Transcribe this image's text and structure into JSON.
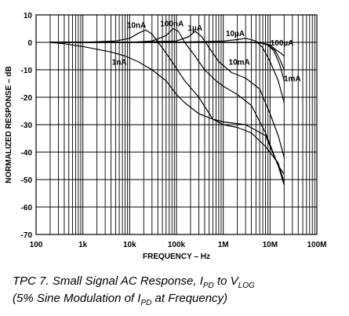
{
  "chart_data": {
    "type": "line",
    "xscale": "log",
    "xlim": [
      100,
      100000000
    ],
    "ylim": [
      -70,
      10
    ],
    "xlabel": "FREQUENCY – Hz",
    "ylabel": "NORMALIZED RESPONSE – dB",
    "x_ticks": [
      {
        "value": 100,
        "label": "100"
      },
      {
        "value": 1000,
        "label": "1k"
      },
      {
        "value": 10000,
        "label": "10k"
      },
      {
        "value": 100000,
        "label": "100k"
      },
      {
        "value": 1000000,
        "label": "1M"
      },
      {
        "value": 10000000,
        "label": "10M"
      },
      {
        "value": 100000000,
        "label": "100M"
      }
    ],
    "y_ticks": [
      10,
      0,
      -10,
      -20,
      -30,
      -40,
      -50,
      -60,
      -70
    ],
    "grid": true,
    "series": [
      {
        "name": "1nA",
        "label": "1nA",
        "label_at": [
          6000,
          -7
        ],
        "points": [
          [
            200,
            0
          ],
          [
            400,
            -0.5
          ],
          [
            1000,
            -1.5
          ],
          [
            2000,
            -2.5
          ],
          [
            4000,
            -3.5
          ],
          [
            8000,
            -5
          ],
          [
            15000,
            -7
          ],
          [
            30000,
            -10
          ],
          [
            60000,
            -14
          ],
          [
            100000,
            -19
          ],
          [
            150000,
            -22
          ],
          [
            300000,
            -26
          ],
          [
            600000,
            -28
          ],
          [
            1000000,
            -29
          ],
          [
            3000000,
            -30
          ],
          [
            8000000,
            -34
          ],
          [
            15000000,
            -45
          ],
          [
            20000000,
            -48
          ]
        ]
      },
      {
        "name": "10nA",
        "label": "10nA",
        "label_at": [
          14000,
          6.5
        ],
        "points": [
          [
            200,
            0
          ],
          [
            1000,
            0
          ],
          [
            5000,
            0.5
          ],
          [
            10000,
            1.5
          ],
          [
            16000,
            3.5
          ],
          [
            22000,
            4.5
          ],
          [
            30000,
            3
          ],
          [
            50000,
            -2
          ],
          [
            80000,
            -7
          ],
          [
            150000,
            -14
          ],
          [
            300000,
            -20
          ],
          [
            600000,
            -28
          ],
          [
            1000000,
            -30
          ],
          [
            2000000,
            -31
          ],
          [
            4000000,
            -33
          ],
          [
            8000000,
            -38
          ],
          [
            15000000,
            -44
          ],
          [
            20000000,
            -51
          ]
        ]
      },
      {
        "name": "100nA",
        "label": "100nA",
        "label_at": [
          80000,
          7
        ],
        "points": [
          [
            200,
            0
          ],
          [
            1000,
            0
          ],
          [
            10000,
            0
          ],
          [
            30000,
            0.5
          ],
          [
            60000,
            2.5
          ],
          [
            85000,
            5
          ],
          [
            110000,
            4
          ],
          [
            150000,
            0
          ],
          [
            250000,
            -5
          ],
          [
            400000,
            -10
          ],
          [
            700000,
            -14
          ],
          [
            1000000,
            -16
          ],
          [
            2000000,
            -19
          ],
          [
            4000000,
            -23
          ],
          [
            8000000,
            -33
          ],
          [
            15000000,
            -45
          ],
          [
            20000000,
            -52
          ]
        ]
      },
      {
        "name": "1µA",
        "label": "1µA",
        "label_at": [
          250000,
          5.5
        ],
        "points": [
          [
            200,
            0
          ],
          [
            1000,
            0
          ],
          [
            10000,
            0
          ],
          [
            100000,
            0.5
          ],
          [
            180000,
            2
          ],
          [
            250000,
            4
          ],
          [
            350000,
            2
          ],
          [
            500000,
            -2
          ],
          [
            800000,
            -7
          ],
          [
            1500000,
            -11
          ],
          [
            3000000,
            -13
          ],
          [
            6000000,
            -17
          ],
          [
            10000000,
            -26
          ],
          [
            15000000,
            -34
          ],
          [
            20000000,
            -42
          ]
        ]
      },
      {
        "name": "10µA",
        "label": "10µA",
        "label_at": [
          1800000,
          3.5
        ],
        "points": [
          [
            200,
            0
          ],
          [
            1000,
            0
          ],
          [
            10000,
            0
          ],
          [
            100000,
            0
          ],
          [
            1000000,
            0.5
          ],
          [
            2000000,
            1
          ],
          [
            3000000,
            1.5
          ],
          [
            5000000,
            0.5
          ],
          [
            7000000,
            -2
          ],
          [
            10000000,
            -7
          ],
          [
            15000000,
            -14
          ],
          [
            20000000,
            -22
          ]
        ]
      },
      {
        "name": "100µA",
        "label": "100µA",
        "label_at": [
          18000000,
          0
        ],
        "points": [
          [
            200,
            0
          ],
          [
            1000,
            0
          ],
          [
            10000,
            0
          ],
          [
            100000,
            0
          ],
          [
            1000000,
            0
          ],
          [
            3000000,
            0
          ],
          [
            6000000,
            0
          ],
          [
            9000000,
            -1
          ],
          [
            12000000,
            -3
          ],
          [
            16000000,
            -8
          ],
          [
            20000000,
            -14
          ]
        ]
      },
      {
        "name": "10mA",
        "label": "10mA",
        "label_at": [
          2200000,
          -7
        ],
        "points": [
          [
            200,
            0
          ],
          [
            10000,
            0
          ],
          [
            100000,
            0
          ],
          [
            1000000,
            0
          ],
          [
            2000000,
            0
          ],
          [
            4000000,
            0
          ],
          [
            6000000,
            0
          ],
          [
            9000000,
            -1
          ],
          [
            13000000,
            -3
          ],
          [
            17000000,
            -7
          ],
          [
            20000000,
            -10
          ]
        ]
      },
      {
        "name": "1mA",
        "label": "1mA",
        "label_at": [
          30000000,
          -13
        ],
        "points": [
          [
            200,
            0
          ],
          [
            10000,
            0
          ],
          [
            100000,
            0
          ],
          [
            1000000,
            0
          ],
          [
            4000000,
            0
          ],
          [
            7000000,
            -0.3
          ],
          [
            10000000,
            -1
          ],
          [
            13000000,
            -2.5
          ],
          [
            17000000,
            -4
          ],
          [
            20000000,
            -5
          ]
        ]
      }
    ]
  },
  "caption": {
    "line1": {
      "prefix": "TPC 7.  Small Signal AC Response, I",
      "sub1": "PD",
      "mid": " to V",
      "sub2": "LOG"
    },
    "line2": {
      "prefix": "(5% Sine Modulation of I",
      "sub1": "PD",
      "suffix": " at Frequency)"
    }
  }
}
